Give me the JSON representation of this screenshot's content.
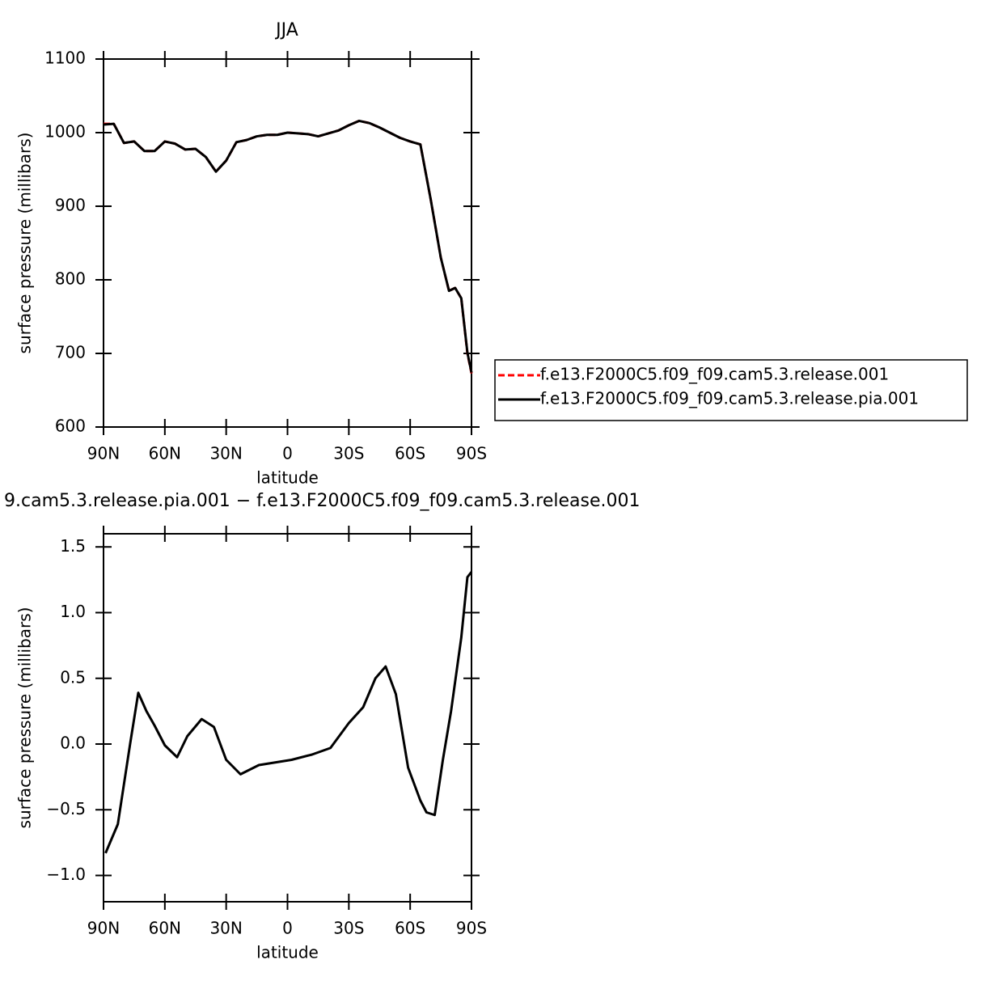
{
  "chart_data": [
    {
      "type": "line",
      "title": "JJA",
      "xlabel": "latitude",
      "ylabel": "surface pressure (millibars)",
      "xlim": [
        90,
        -90
      ],
      "ylim": [
        600,
        1100
      ],
      "xticks": [
        {
          "value": 90,
          "label": "90N"
        },
        {
          "value": 60,
          "label": "60N"
        },
        {
          "value": 30,
          "label": "30N"
        },
        0,
        {
          "value": -30,
          "label": "30S"
        },
        {
          "value": -60,
          "label": "60S"
        },
        {
          "value": -90,
          "label": "90S"
        }
      ],
      "yticks": [
        600,
        700,
        800,
        900,
        1000,
        1100
      ],
      "x": [
        90,
        85,
        80,
        75,
        70,
        65,
        60,
        55,
        50,
        45,
        40,
        35,
        30,
        25,
        20,
        15,
        10,
        5,
        0,
        -5,
        -10,
        -15,
        -20,
        -25,
        -30,
        -35,
        -40,
        -45,
        -50,
        -55,
        -60,
        -65,
        -70,
        -75,
        -79,
        -82,
        -85,
        -88,
        -90
      ],
      "series": [
        {
          "name": "f.e13.F2000C5.f09_f09.cam5.3.release.001",
          "color": "#ff0000",
          "line_style": "dashed",
          "values": [
            1012,
            1012,
            986,
            988,
            975,
            975,
            988,
            985,
            977,
            978,
            967,
            947,
            962,
            987,
            990,
            995,
            997,
            997,
            1000,
            999,
            998,
            995,
            999,
            1003,
            1010,
            1016,
            1013,
            1007,
            1000,
            993,
            988,
            984,
            910,
            830,
            785,
            789,
            775,
            700,
            673
          ]
        },
        {
          "name": "f.e13.F2000C5.f09_f09.cam5.3.release.pia.001",
          "color": "#000000",
          "line_style": "solid",
          "values": [
            1011,
            1012,
            986,
            988,
            975,
            975,
            988,
            985,
            977,
            978,
            967,
            947,
            962,
            987,
            990,
            995,
            997,
            997,
            1000,
            999,
            998,
            995,
            999,
            1003,
            1010,
            1016,
            1013,
            1007,
            1000,
            993,
            988,
            984,
            910,
            830,
            785,
            789,
            775,
            701,
            674
          ]
        }
      ],
      "legend": "right"
    },
    {
      "type": "line",
      "title": "9.cam5.3.release.pia.001 − f.e13.F2000C5.f09_f09.cam5.3.release.001",
      "xlabel": "latitude",
      "ylabel": "surface pressure (millibars)",
      "xlim": [
        90,
        -90
      ],
      "ylim": [
        -1.2,
        1.6
      ],
      "xticks": [
        {
          "value": 90,
          "label": "90N"
        },
        {
          "value": 60,
          "label": "60N"
        },
        {
          "value": 30,
          "label": "30N"
        },
        0,
        {
          "value": -30,
          "label": "30S"
        },
        {
          "value": -60,
          "label": "60S"
        },
        {
          "value": -90,
          "label": "90S"
        }
      ],
      "yticks": [
        {
          "value": -1,
          "label": "−1.0"
        },
        {
          "value": -0.5,
          "label": "−0.5"
        },
        {
          "value": 0,
          "label": "0.0"
        },
        0.5,
        {
          "value": 1,
          "label": "1.0"
        },
        1.5
      ],
      "x": [
        89,
        83,
        77,
        73,
        69,
        65,
        60,
        54,
        49,
        42,
        36,
        30,
        23,
        14,
        6,
        -2,
        -12,
        -21,
        -30,
        -37,
        -43,
        -48,
        -53,
        -59,
        -65,
        -68,
        -72,
        -76,
        -80,
        -85,
        -88,
        -90
      ],
      "series": [
        {
          "name": null,
          "color": "#000000",
          "line_style": "solid",
          "values": [
            -0.83,
            -0.61,
            0.0,
            0.39,
            0.25,
            0.14,
            -0.01,
            -0.1,
            0.06,
            0.19,
            0.13,
            -0.12,
            -0.23,
            -0.16,
            -0.14,
            -0.12,
            -0.08,
            -0.03,
            0.16,
            0.28,
            0.5,
            0.59,
            0.38,
            -0.18,
            -0.43,
            -0.52,
            -0.54,
            -0.12,
            0.25,
            0.81,
            1.27,
            1.31
          ]
        }
      ]
    }
  ]
}
